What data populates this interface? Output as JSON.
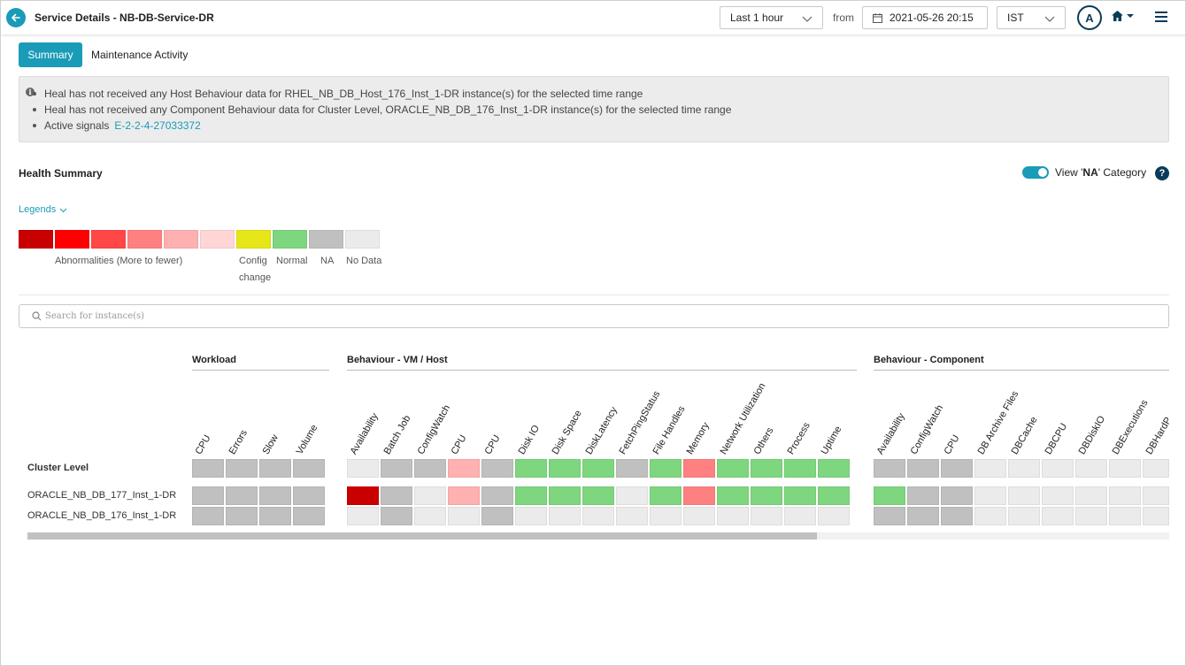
{
  "header": {
    "title": "Service Details - NB-DB-Service-DR",
    "time_range": "Last 1 hour",
    "from_label": "from",
    "from_date": "2021-05-26 20:15",
    "timezone": "IST",
    "avatar_initial": "A"
  },
  "tabs": {
    "summary": "Summary",
    "maintenance": "Maintenance Activity"
  },
  "info": {
    "messages": [
      "Heal has not received any Host Behaviour data for RHEL_NB_DB_Host_176_Inst_1-DR instance(s) for the selected time range",
      "Heal has not received any Component Behaviour data for Cluster Level, ORACLE_NB_DB_176_Inst_1-DR instance(s) for the selected time range"
    ],
    "signals_label": "Active signals",
    "signal_id": "E-2-2-4-27033372"
  },
  "health": {
    "title": "Health Summary",
    "toggle_label_pre": "View '",
    "toggle_label_bold": "NA",
    "toggle_label_post": "' Category",
    "toggle_on": true,
    "help": "?"
  },
  "legends": {
    "link": "Legends",
    "swatches": [
      "#c90000",
      "#ff0000",
      "#ff4747",
      "#ff8080",
      "#ffb0b0",
      "#ffd5d5",
      "#e6e619",
      "#7ed67e",
      "#c0c0c0",
      "#ebebeb"
    ],
    "abnormal": "Abnormalities (More to fewer)",
    "config_1": "Config",
    "config_2": "change",
    "normal": "Normal",
    "na": "NA",
    "nodata": "No Data"
  },
  "search": {
    "placeholder": "Search for instance(s)"
  },
  "grid": {
    "groups": [
      "Workload",
      "Behaviour - VM / Host",
      "Behaviour - Component"
    ],
    "workload_cols": [
      "CPU",
      "Errors",
      "Slow",
      "Volume"
    ],
    "host_cols": [
      "Availability",
      "Batch Job",
      "ConfigWatch",
      "CPU",
      "CPU",
      "Disk IO",
      "Disk Space",
      "DiskLatency",
      "FetchPingStatus",
      "File Handles",
      "Memory",
      "Network Utilization",
      "Others",
      "Process",
      "Uptime"
    ],
    "component_cols": [
      "Availability",
      "ConfigWatch",
      "CPU",
      "DB Archive Files",
      "DBCache",
      "DBCPU",
      "DBDiskIO",
      "DBExecutions",
      "DBHardP"
    ],
    "rows": [
      "Cluster Level",
      "ORACLE_NB_DB_177_Inst_1-DR",
      "ORACLE_NB_DB_176_Inst_1-DR"
    ],
    "palette": {
      "R": "#c90000",
      "P": "#ffb0b0",
      "S": "#ff8080",
      "G": "#7ed67e",
      "A": "#c0c0c0",
      "L": "#ebebeb"
    },
    "cells": [
      {
        "workload": "AAAA",
        "host": "LAAPAGGGAGSGGGG",
        "component": "AAALLLLLL"
      },
      {
        "workload": "AAAA",
        "host": "RALPAGGGLGSGGGG",
        "component": "GAALLLLLL"
      },
      {
        "workload": "AAAA",
        "host": "LALLALLLLLLLLLL",
        "component": "AAALLLLLL"
      }
    ]
  }
}
